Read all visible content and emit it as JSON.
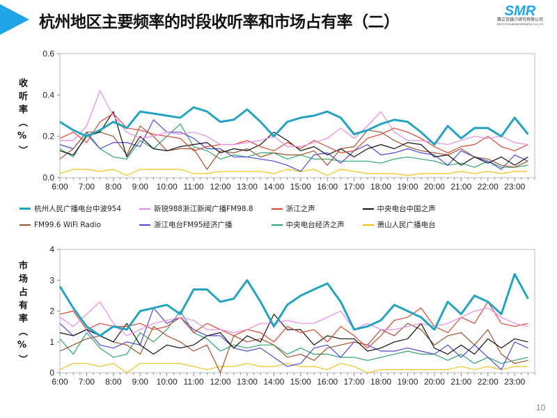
{
  "title": "杭州地区主要频率的时段收听率和市场占有率（二）",
  "logo": {
    "mark": "SMR",
    "cn": "赛立信媒介研究有限公司",
    "en": "SELECTION MEDIA RESEARCH CO.,LTD"
  },
  "page_number": "10",
  "chart_data": [
    {
      "type": "line",
      "ylabel": "收听率（%）",
      "ylim": [
        0,
        0.6
      ],
      "yticks": [
        "0.0",
        "0.2",
        "0.4",
        "0.6"
      ],
      "ytick_values": [
        0,
        0.2,
        0.4,
        0.6
      ],
      "x_hours": [
        6,
        6.5,
        7,
        7.5,
        8,
        8.5,
        9,
        9.5,
        10,
        10.5,
        11,
        11.5,
        12,
        12.5,
        13,
        13.5,
        14,
        14.5,
        15,
        15.5,
        16,
        16.5,
        17,
        17.5,
        18,
        18.5,
        19,
        19.5,
        20,
        20.5,
        21,
        21.5,
        22,
        22.5,
        23,
        23.5
      ],
      "xlim": [
        6,
        23.75
      ],
      "xticks": [
        "6:00",
        "7:00",
        "8:00",
        "9:00",
        "10:00",
        "11:00",
        "12:00",
        "13:00",
        "14:00",
        "15:00",
        "16:00",
        "17:00",
        "18:00",
        "19:00",
        "20:00",
        "21:00",
        "22:00",
        "23:00"
      ],
      "series": [
        {
          "name": "杭州人民广播电台中波954",
          "color": "#22a3c0",
          "values": [
            0.27,
            0.23,
            0.2,
            0.23,
            0.27,
            0.24,
            0.32,
            0.31,
            0.3,
            0.29,
            0.34,
            0.32,
            0.27,
            0.28,
            0.33,
            0.27,
            0.2,
            0.27,
            0.29,
            0.3,
            0.32,
            0.29,
            0.21,
            0.23,
            0.26,
            0.28,
            0.27,
            0.22,
            0.16,
            0.25,
            0.19,
            0.24,
            0.24,
            0.2,
            0.29,
            0.21
          ]
        },
        {
          "name": "新锐988浙江新闻广播FM98.8",
          "color": "#e98be6",
          "values": [
            0.18,
            0.18,
            0.25,
            0.42,
            0.3,
            0.22,
            0.19,
            0.2,
            0.22,
            0.21,
            0.22,
            0.2,
            0.16,
            0.16,
            0.17,
            0.18,
            0.2,
            0.15,
            0.15,
            0.17,
            0.19,
            0.24,
            0.19,
            0.25,
            0.32,
            0.22,
            0.18,
            0.18,
            0.17,
            0.16,
            0.18,
            0.2,
            0.19,
            0.2,
            0.17,
            0.16
          ]
        },
        {
          "name": "浙江之声",
          "color": "#e0462f",
          "values": [
            0.19,
            0.22,
            0.17,
            0.27,
            0.31,
            0.24,
            0.23,
            0.21,
            0.2,
            0.19,
            0.13,
            0.15,
            0.16,
            0.16,
            0.18,
            0.15,
            0.13,
            0.17,
            0.14,
            0.18,
            0.15,
            0.12,
            0.13,
            0.19,
            0.21,
            0.24,
            0.22,
            0.19,
            0.15,
            0.12,
            0.15,
            0.16,
            0.2,
            0.15,
            0.13,
            0.16
          ]
        },
        {
          "name": "中央电台中国之声",
          "color": "#111111",
          "values": [
            0.13,
            0.11,
            0.2,
            0.22,
            0.32,
            0.1,
            0.2,
            0.14,
            0.13,
            0.15,
            0.16,
            0.17,
            0.12,
            0.14,
            0.13,
            0.16,
            0.22,
            0.18,
            0.13,
            0.15,
            0.11,
            0.14,
            0.1,
            0.14,
            0.16,
            0.14,
            0.17,
            0.16,
            0.1,
            0.11,
            0.06,
            0.1,
            0.07,
            0.1,
            0.06,
            0.1
          ]
        },
        {
          "name": "FM99.6 WiFi Radio",
          "color": "#a0522d",
          "values": [
            0.09,
            0.14,
            0.22,
            0.22,
            0.2,
            0.11,
            0.25,
            0.2,
            0.13,
            0.14,
            0.14,
            0.04,
            0.13,
            0.12,
            0.14,
            0.1,
            0.12,
            0.11,
            0.11,
            0.13,
            0.06,
            0.14,
            0.15,
            0.23,
            0.22,
            0.18,
            0.15,
            0.13,
            0.12,
            0.11,
            0.14,
            0.1,
            0.09,
            0.06,
            0.05,
            0.08
          ]
        },
        {
          "name": "浙江电台FM95经济广播",
          "color": "#4a4ae0",
          "values": [
            0.16,
            0.14,
            0.22,
            0.14,
            0.17,
            0.17,
            0.15,
            0.28,
            0.22,
            0.22,
            0.19,
            0.14,
            0.14,
            0.1,
            0.1,
            0.09,
            0.08,
            0.06,
            0.03,
            0.11,
            0.12,
            0.07,
            0.13,
            0.16,
            0.11,
            0.12,
            0.14,
            0.12,
            0.11,
            0.06,
            0.13,
            0.1,
            0.08,
            0.04,
            0.11,
            0.08
          ]
        },
        {
          "name": "中央电台经济之声",
          "color": "#2ea56f",
          "values": [
            0.14,
            0.1,
            0.21,
            0.14,
            0.1,
            0.09,
            0.18,
            0.14,
            0.2,
            0.26,
            0.15,
            0.13,
            0.09,
            0.11,
            0.1,
            0.12,
            0.12,
            0.09,
            0.11,
            0.09,
            0.09,
            0.08,
            0.08,
            0.08,
            0.07,
            0.09,
            0.1,
            0.09,
            0.08,
            0.06,
            0.07,
            0.05,
            0.08,
            0.05,
            0.05,
            0.06
          ]
        },
        {
          "name": "萧山人民广播电台",
          "color": "#f0c419",
          "values": [
            0.02,
            0.04,
            0.04,
            0.03,
            0.04,
            0.01,
            0.04,
            0.04,
            0.04,
            0.04,
            0.02,
            0.02,
            0.03,
            0.03,
            0.03,
            0.03,
            0.02,
            0.04,
            0.03,
            0.04,
            0.01,
            0.04,
            0.03,
            0.02,
            0.02,
            0.02,
            0.01,
            0.02,
            0.02,
            0.02,
            0.03,
            0.02,
            0.03,
            0.02,
            0.03,
            0.03
          ]
        }
      ]
    },
    {
      "type": "line",
      "ylabel": "市场占有率（%）",
      "ylim": [
        0,
        4
      ],
      "yticks": [
        "0",
        "1",
        "2",
        "3",
        "4"
      ],
      "ytick_values": [
        0,
        1,
        2,
        3,
        4
      ],
      "x_hours": [
        6,
        6.5,
        7,
        7.5,
        8,
        8.5,
        9,
        9.5,
        10,
        10.5,
        11,
        11.5,
        12,
        12.5,
        13,
        13.5,
        14,
        14.5,
        15,
        15.5,
        16,
        16.5,
        17,
        17.5,
        18,
        18.5,
        19,
        19.5,
        20,
        20.5,
        21,
        21.5,
        22,
        22.5,
        23,
        23.5
      ],
      "xlim": [
        6,
        23.75
      ],
      "xticks": [
        "6:00",
        "7:00",
        "8:00",
        "9:00",
        "10:00",
        "11:00",
        "12:00",
        "13:00",
        "14:00",
        "15:00",
        "16:00",
        "17:00",
        "18:00",
        "19:00",
        "20:00",
        "21:00",
        "22:00",
        "23:00"
      ],
      "series": [
        {
          "name": "杭州人民广播电台中波954",
          "color": "#22a3c0",
          "values": [
            2.8,
            2.1,
            1.5,
            1.2,
            1.5,
            1.4,
            2.0,
            2.1,
            2.2,
            1.9,
            2.7,
            2.7,
            2.3,
            2.4,
            3.0,
            2.3,
            1.5,
            2.2,
            2.5,
            2.7,
            2.9,
            2.3,
            1.4,
            1.5,
            1.7,
            2.2,
            2.0,
            1.8,
            1.4,
            2.3,
            1.9,
            2.5,
            2.3,
            1.9,
            3.2,
            2.4
          ]
        },
        {
          "name": "新锐988浙江新闻广播FM98.8",
          "color": "#e98be6",
          "values": [
            1.8,
            1.5,
            1.9,
            2.3,
            1.6,
            1.2,
            1.4,
            1.6,
            1.7,
            1.8,
            1.7,
            1.4,
            1.4,
            1.3,
            1.4,
            1.6,
            1.6,
            1.7,
            1.6,
            1.6,
            1.8,
            2.0,
            1.4,
            1.6,
            1.4,
            1.4,
            1.5,
            1.6,
            1.5,
            1.6,
            1.8,
            2.0,
            2.1,
            1.8,
            1.6,
            1.5
          ]
        },
        {
          "name": "浙江之声",
          "color": "#e0462f",
          "values": [
            1.9,
            2.0,
            1.4,
            1.6,
            1.5,
            1.5,
            1.6,
            1.4,
            1.5,
            1.8,
            1.3,
            1.6,
            1.4,
            1.2,
            1.4,
            1.3,
            1.0,
            1.5,
            1.3,
            1.4,
            1.0,
            1.5,
            1.2,
            0.8,
            1.2,
            1.7,
            1.8,
            2.1,
            1.5,
            1.3,
            1.8,
            1.6,
            2.3,
            1.6,
            1.5,
            1.6
          ]
        },
        {
          "name": "中央电台中国之声",
          "color": "#111111",
          "values": [
            1.3,
            1.2,
            1.4,
            1.2,
            1.0,
            1.6,
            0.9,
            0.6,
            0.9,
            0.8,
            0.9,
            1.2,
            1.3,
            0.8,
            1.2,
            1.0,
            1.9,
            1.4,
            1.4,
            0.9,
            1.2,
            1.1,
            1.1,
            0.7,
            0.8,
            1.0,
            1.1,
            1.6,
            0.8,
            0.6,
            0.9,
            0.6,
            1.1,
            0.8,
            1.1,
            1.0
          ]
        },
        {
          "name": "FM99.6 WiFi Radio",
          "color": "#a0522d",
          "values": [
            0.7,
            0.9,
            1.1,
            1.2,
            1.0,
            0.9,
            0.6,
            1.5,
            1.2,
            1.0,
            0.7,
            0.9,
            0.0,
            1.2,
            1.0,
            1.1,
            0.9,
            0.5,
            0.6,
            0.4,
            0.8,
            0.9,
            1.0,
            0.9,
            1.4,
            1.2,
            1.6,
            1.4,
            0.9,
            1.2,
            1.3,
            0.9,
            1.4,
            0.6,
            0.3,
            0.4
          ]
        },
        {
          "name": "浙江电台FM95经济广播",
          "color": "#4a4ae0",
          "values": [
            1.6,
            1.2,
            1.4,
            0.9,
            0.8,
            1.0,
            0.9,
            2.1,
            1.6,
            1.8,
            1.4,
            1.2,
            1.2,
            0.8,
            0.7,
            0.8,
            0.5,
            0.2,
            0.3,
            0.8,
            0.9,
            0.5,
            1.0,
            0.9,
            0.7,
            0.7,
            0.8,
            0.7,
            0.6,
            0.9,
            0.5,
            0.9,
            0.5,
            0.1,
            1.0,
            0.8
          ]
        },
        {
          "name": "中央电台经济之声",
          "color": "#2ea56f",
          "values": [
            1.1,
            0.6,
            1.3,
            0.8,
            0.5,
            0.6,
            1.3,
            1.0,
            1.4,
            2.0,
            1.3,
            1.1,
            0.7,
            0.9,
            0.8,
            0.9,
            0.9,
            0.6,
            0.8,
            0.6,
            0.6,
            0.5,
            0.5,
            0.4,
            0.5,
            0.6,
            0.7,
            0.6,
            0.6,
            0.4,
            0.6,
            0.3,
            0.5,
            0.3,
            0.4,
            0.5
          ]
        },
        {
          "name": "萧山人民广播电台",
          "color": "#f0c419",
          "values": [
            0.1,
            0.3,
            0.3,
            0.2,
            0.3,
            0.0,
            0.3,
            0.3,
            0.3,
            0.3,
            0.2,
            0.1,
            0.2,
            0.2,
            0.3,
            0.2,
            0.2,
            0.3,
            0.2,
            0.2,
            0.1,
            0.3,
            0.2,
            0.0,
            0.1,
            0.1,
            0.1,
            0.1,
            0.1,
            0.1,
            0.2,
            0.1,
            0.2,
            0.1,
            0.2,
            0.2
          ]
        }
      ]
    }
  ]
}
